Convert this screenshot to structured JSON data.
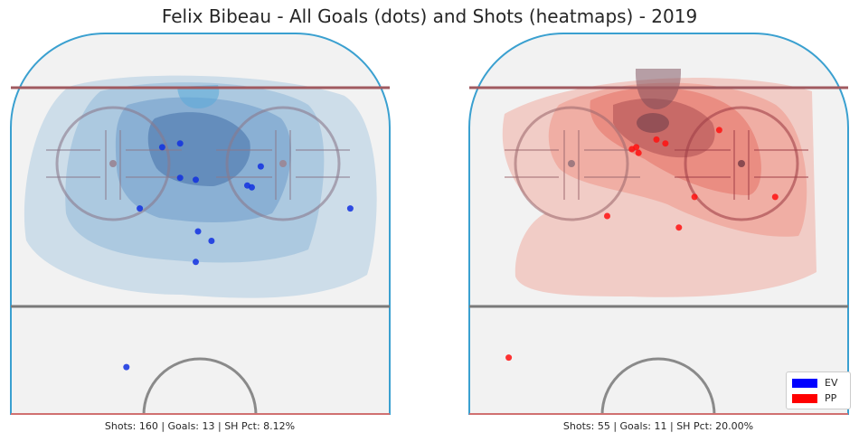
{
  "chart_data": {
    "type": "heatmap",
    "title": "Felix Bibeau - All Goals (dots) and Shots (heatmaps) - 2019",
    "legend": {
      "placement": "bottom-right",
      "entries": [
        {
          "label": "EV",
          "color": "#0000ff"
        },
        {
          "label": "PP",
          "color": "#ff0000"
        }
      ]
    },
    "panels": [
      {
        "name": "EV",
        "caption": "Shots: 160 | Goals: 13 | SH Pct: 8.12%",
        "shots": 160,
        "goals": 13,
        "sh_pct": 8.12,
        "x_range": [
          -42.5,
          42.5
        ],
        "y_range": [
          0,
          100
        ],
        "heat_color": "#4a90c8",
        "dot_color": "#1030e0",
        "goal_points": [
          {
            "x": -8.5,
            "y": 70
          },
          {
            "x": -4.5,
            "y": 71
          },
          {
            "x": -4.5,
            "y": 62
          },
          {
            "x": -1,
            "y": 61.5
          },
          {
            "x": 13.5,
            "y": 65
          },
          {
            "x": 10.5,
            "y": 60
          },
          {
            "x": 11.5,
            "y": 59.5
          },
          {
            "x": -13.5,
            "y": 54
          },
          {
            "x": 33.5,
            "y": 54
          },
          {
            "x": -0.5,
            "y": 48
          },
          {
            "x": 2.5,
            "y": 45.5
          },
          {
            "x": -1,
            "y": 40
          },
          {
            "x": -16.5,
            "y": 12.5
          }
        ]
      },
      {
        "name": "PP",
        "caption": "Shots: 55 | Goals: 11 | SH Pct: 20.00%",
        "shots": 55,
        "goals": 11,
        "sh_pct": 20.0,
        "x_range": [
          -42.5,
          42.5
        ],
        "y_range": [
          0,
          100
        ],
        "heat_color": "#f06a55",
        "dot_color": "#ff1010",
        "goal_points": [
          {
            "x": 13.5,
            "y": 74.5
          },
          {
            "x": -0.5,
            "y": 72
          },
          {
            "x": -6,
            "y": 69.5
          },
          {
            "x": -4.5,
            "y": 68.5
          },
          {
            "x": 8,
            "y": 57
          },
          {
            "x": 26,
            "y": 57
          },
          {
            "x": -11.5,
            "y": 52
          },
          {
            "x": 4.5,
            "y": 49
          },
          {
            "x": -33.5,
            "y": 15
          },
          {
            "x": 1.5,
            "y": 71
          },
          {
            "x": -5,
            "y": 70
          }
        ]
      }
    ]
  }
}
